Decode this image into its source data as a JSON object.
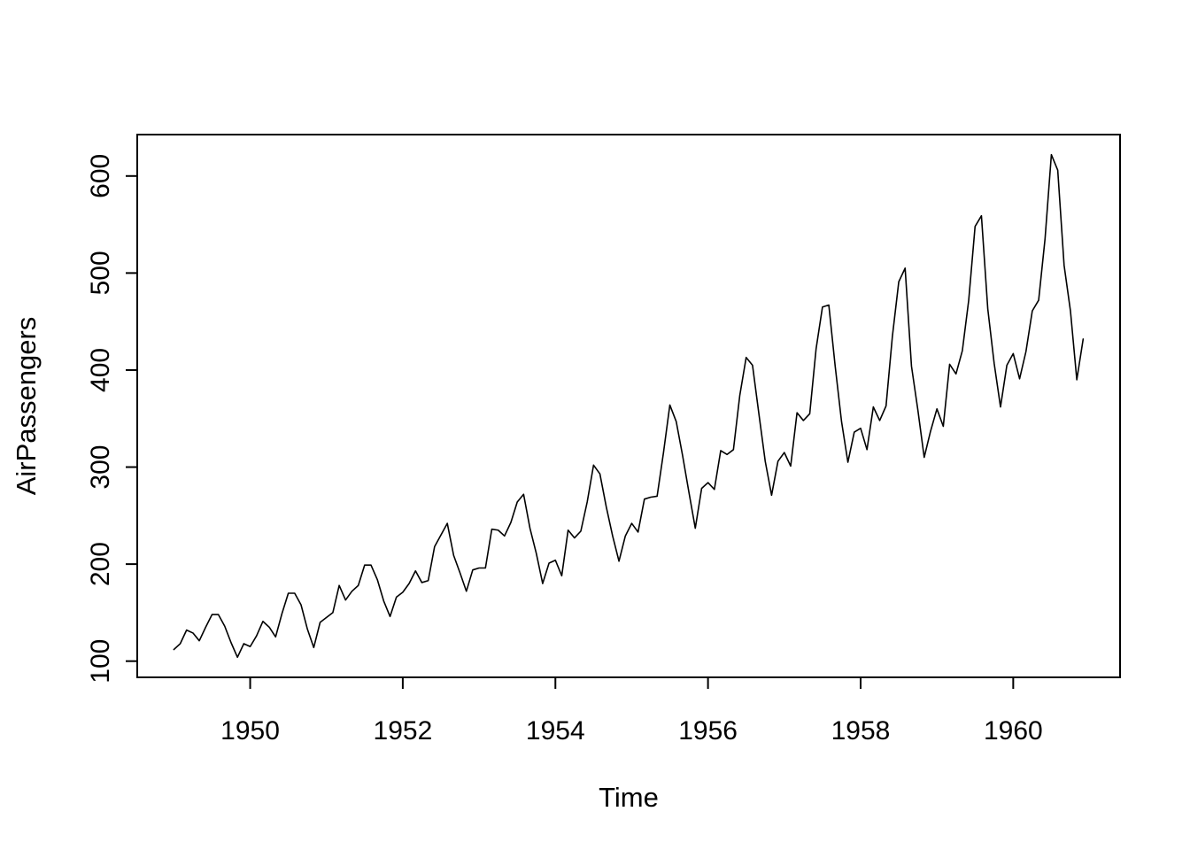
{
  "chart_data": {
    "type": "line",
    "title": "",
    "xlabel": "Time",
    "ylabel": "AirPassengers",
    "series": [
      {
        "name": "AirPassengers",
        "x_start_year": 1949,
        "points_per_year": 12,
        "values": [
          112,
          118,
          132,
          129,
          121,
          135,
          148,
          148,
          136,
          119,
          104,
          118,
          115,
          126,
          141,
          135,
          125,
          149,
          170,
          170,
          158,
          133,
          114,
          140,
          145,
          150,
          178,
          163,
          172,
          178,
          199,
          199,
          184,
          162,
          146,
          166,
          171,
          180,
          193,
          181,
          183,
          218,
          230,
          242,
          209,
          191,
          172,
          194,
          196,
          196,
          236,
          235,
          229,
          243,
          264,
          272,
          237,
          211,
          180,
          201,
          204,
          188,
          235,
          227,
          234,
          264,
          302,
          293,
          259,
          229,
          203,
          229,
          242,
          233,
          267,
          269,
          270,
          315,
          364,
          347,
          312,
          274,
          237,
          278,
          284,
          277,
          317,
          313,
          318,
          374,
          413,
          405,
          355,
          306,
          271,
          306,
          315,
          301,
          356,
          348,
          355,
          422,
          465,
          467,
          404,
          347,
          305,
          336,
          340,
          318,
          362,
          348,
          363,
          435,
          491,
          505,
          404,
          359,
          310,
          337,
          360,
          342,
          406,
          396,
          420,
          472,
          548,
          559,
          463,
          407,
          362,
          405,
          417,
          391,
          419,
          461,
          472,
          535,
          622,
          606,
          508,
          461,
          390,
          432
        ]
      }
    ],
    "x_ticks": [
      1950,
      1952,
      1954,
      1956,
      1958,
      1960
    ],
    "y_ticks": [
      100,
      200,
      300,
      400,
      500,
      600
    ],
    "xlim": [
      1948.52,
      1961.4
    ],
    "ylim": [
      83.3,
      642.7
    ],
    "line_color": "#000000",
    "background": "#ffffff",
    "grid": false,
    "legend_position": "none"
  }
}
